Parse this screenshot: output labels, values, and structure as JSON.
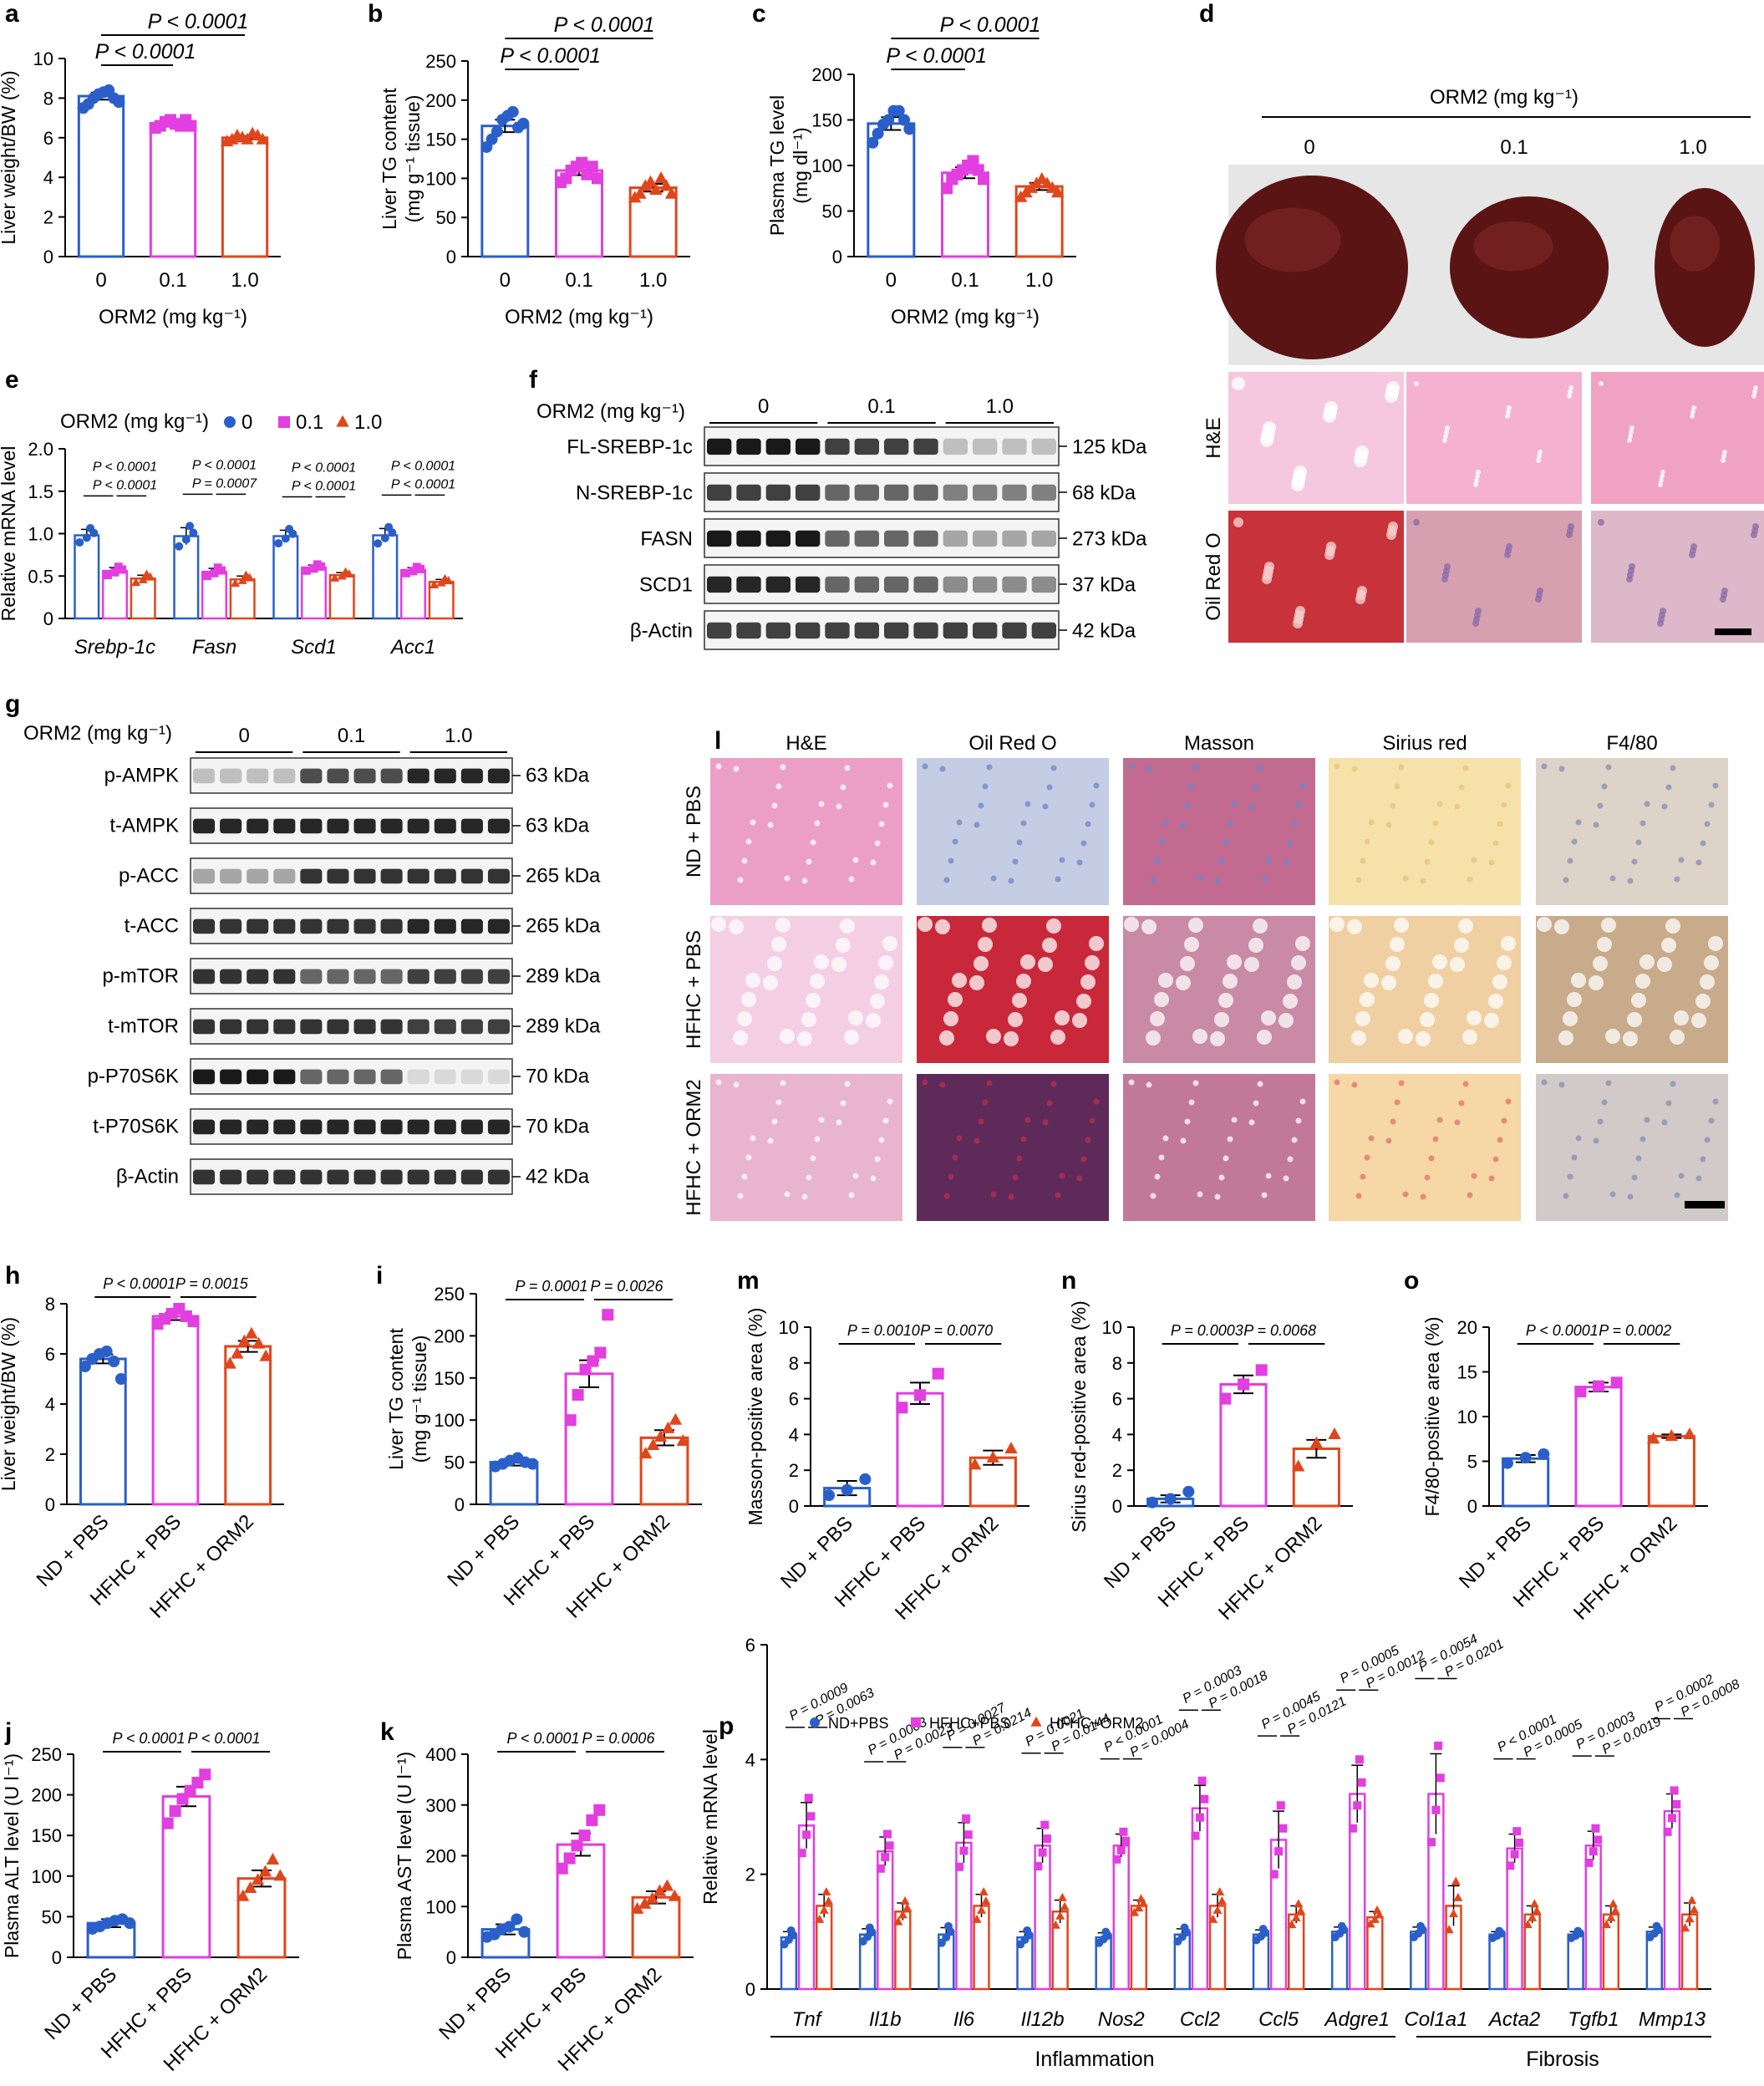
{
  "colors": {
    "blue": "#2a5fc9",
    "magenta": "#e23ee0",
    "red": "#e0461c",
    "black": "#000000"
  },
  "panels": {
    "a": {
      "letter": "a",
      "ylabel": "Liver weight/BW (%)",
      "xlabel": "ORM2 (mg kg⁻¹)",
      "ticks_y": [
        "0",
        "2",
        "4",
        "6",
        "8",
        "10"
      ],
      "ymax": 10,
      "cats": [
        "0",
        "0.1",
        "1.0"
      ],
      "values": [
        8.1,
        6.7,
        6.0
      ],
      "errors": [
        0.18,
        0.1,
        0.08
      ],
      "points": [
        [
          7.5,
          7.7,
          8.0,
          8.2,
          8.3,
          8.4,
          8.0,
          7.8
        ],
        [
          6.5,
          6.6,
          6.8,
          6.9,
          6.7,
          6.6,
          6.9,
          6.6
        ],
        [
          5.8,
          5.9,
          6.1,
          6.0,
          5.9,
          6.2,
          6.1,
          5.9
        ]
      ],
      "sig": [
        "P < 0.0001",
        "P < 0.0001"
      ]
    },
    "b": {
      "letter": "b",
      "ylabel": "Liver TG content",
      "ylabel2": "(mg g⁻¹ tissue)",
      "xlabel": "ORM2 (mg kg⁻¹)",
      "ticks_y": [
        "0",
        "50",
        "100",
        "150",
        "200",
        "250"
      ],
      "ymax": 250,
      "cats": [
        "0",
        "0.1",
        "1.0"
      ],
      "values": [
        167,
        110,
        88
      ],
      "errors": [
        8,
        6,
        5
      ],
      "points": [
        [
          140,
          150,
          160,
          175,
          180,
          185,
          165,
          170
        ],
        [
          95,
          100,
          110,
          115,
          120,
          105,
          115,
          100
        ],
        [
          75,
          80,
          90,
          95,
          85,
          100,
          90,
          80
        ]
      ],
      "sig": [
        "P < 0.0001",
        "P < 0.0001"
      ]
    },
    "c": {
      "letter": "c",
      "ylabel": "Plasma TG level",
      "ylabel2": "(mg dl⁻¹)",
      "xlabel": "ORM2 (mg kg⁻¹)",
      "ticks_y": [
        "0",
        "50",
        "100",
        "150",
        "200"
      ],
      "ymax": 200,
      "cats": [
        "0",
        "0.1",
        "1.0"
      ],
      "values": [
        146,
        92,
        77
      ],
      "errors": [
        7,
        6,
        4
      ],
      "points": [
        [
          125,
          135,
          145,
          150,
          160,
          160,
          150,
          140
        ],
        [
          75,
          85,
          90,
          95,
          100,
          105,
          95,
          85
        ],
        [
          65,
          70,
          75,
          80,
          85,
          80,
          75,
          70
        ]
      ],
      "sig": [
        "P < 0.0001",
        "P < 0.0001"
      ]
    },
    "d": {
      "letter": "d",
      "title": "ORM2 (mg kg⁻¹)",
      "doses": [
        "0",
        "0.1",
        "1.0"
      ],
      "rows": [
        "H&E",
        "Oil Red O"
      ]
    },
    "e": {
      "letter": "e",
      "ylabel": "Relative mRNA level",
      "legend_title": "ORM2 (mg kg⁻¹)",
      "legend": [
        "0",
        "0.1",
        "1.0"
      ],
      "ticks_y": [
        "0",
        "0.5",
        "1.0",
        "1.5",
        "2.0"
      ],
      "ymax": 2.0,
      "genes": [
        "Srebp-1c",
        "Fasn",
        "Scd1",
        "Acc1"
      ],
      "values": [
        [
          0.98,
          0.56,
          0.47
        ],
        [
          0.97,
          0.55,
          0.46
        ],
        [
          0.97,
          0.6,
          0.51
        ],
        [
          0.98,
          0.57,
          0.43
        ]
      ],
      "errors": [
        [
          0.07,
          0.04,
          0.04
        ],
        [
          0.1,
          0.04,
          0.04
        ],
        [
          0.07,
          0.03,
          0.03
        ],
        [
          0.08,
          0.03,
          0.03
        ]
      ],
      "sig": [
        [
          "P < 0.0001",
          "P < 0.0001"
        ],
        [
          "P = 0.0007",
          "P < 0.0001"
        ],
        [
          "P < 0.0001",
          "P < 0.0001"
        ],
        [
          "P < 0.0001",
          "P < 0.0001"
        ]
      ]
    },
    "f": {
      "letter": "f",
      "header": "ORM2 (mg kg⁻¹)",
      "groups": [
        "0",
        "0.1",
        "1.0"
      ],
      "bands": [
        {
          "name": "FL-SREBP-1c",
          "size": "125 kDa"
        },
        {
          "name": "N-SREBP-1c",
          "size": "68 kDa"
        },
        {
          "name": "FASN",
          "size": "273 kDa"
        },
        {
          "name": "SCD1",
          "size": "37 kDa"
        },
        {
          "name": "β-Actin",
          "size": "42 kDa"
        }
      ]
    },
    "g": {
      "letter": "g",
      "header": "ORM2 (mg kg⁻¹)",
      "groups": [
        "0",
        "0.1",
        "1.0"
      ],
      "bands": [
        {
          "name": "p-AMPK",
          "size": "63 kDa"
        },
        {
          "name": "t-AMPK",
          "size": "63 kDa"
        },
        {
          "name": "p-ACC",
          "size": "265 kDa"
        },
        {
          "name": "t-ACC",
          "size": "265 kDa"
        },
        {
          "name": "p-mTOR",
          "size": "289 kDa"
        },
        {
          "name": "t-mTOR",
          "size": "289 kDa"
        },
        {
          "name": "p-P70S6K",
          "size": "70 kDa"
        },
        {
          "name": "t-P70S6K",
          "size": "70 kDa"
        },
        {
          "name": "β-Actin",
          "size": "42 kDa"
        }
      ]
    },
    "l": {
      "letter": "l",
      "cols": [
        "H&E",
        "Oil Red O",
        "Masson",
        "Sirius red",
        "F4/80"
      ],
      "rows": [
        "ND + PBS",
        "HFHC + PBS",
        "HFHC + ORM2"
      ]
    },
    "h": {
      "letter": "h",
      "ylabel": "Liver weight/BW (%)",
      "ticks_y": [
        "0",
        "2",
        "4",
        "6",
        "8"
      ],
      "ymax": 8,
      "cats": [
        "ND + PBS",
        "HFHC + PBS",
        "HFHC + ORM2"
      ],
      "values": [
        5.8,
        7.5,
        6.3
      ],
      "errors": [
        0.18,
        0.15,
        0.22
      ],
      "points": [
        [
          5.5,
          5.8,
          6.0,
          6.1,
          5.7,
          5.0
        ],
        [
          7.2,
          7.4,
          7.6,
          7.8,
          7.5,
          7.3
        ],
        [
          5.6,
          6.0,
          6.5,
          6.8,
          6.4,
          5.9
        ]
      ],
      "sig": [
        "P < 0.0001",
        "P = 0.0015"
      ]
    },
    "i": {
      "letter": "i",
      "ylabel": "Liver TG content",
      "ylabel2": "(mg g⁻¹ tissue)",
      "ticks_y": [
        "0",
        "50",
        "100",
        "150",
        "200",
        "250"
      ],
      "ymax": 250,
      "cats": [
        "ND + PBS",
        "HFHC + PBS",
        "HFHC + ORM2"
      ],
      "values": [
        50,
        155,
        79
      ],
      "errors": [
        4,
        16,
        9
      ],
      "points": [
        [
          45,
          48,
          52,
          55,
          50,
          48
        ],
        [
          100,
          130,
          160,
          170,
          180,
          225
        ],
        [
          60,
          70,
          80,
          90,
          100,
          75
        ]
      ],
      "sig": [
        "P = 0.0001",
        "P = 0.0026"
      ]
    },
    "m": {
      "letter": "m",
      "ylabel": "Masson-positive area (%)",
      "ticks_y": [
        "0",
        "2",
        "4",
        "6",
        "8",
        "10"
      ],
      "ymax": 10,
      "cats": [
        "ND + PBS",
        "HFHC + PBS",
        "HFHC + ORM2"
      ],
      "values": [
        1.0,
        6.3,
        2.7
      ],
      "errors": [
        0.4,
        0.6,
        0.4
      ],
      "points": [
        [
          0.6,
          0.9,
          1.5
        ],
        [
          5.5,
          6.2,
          7.4
        ],
        [
          2.3,
          2.7,
          3.2
        ]
      ],
      "sig": [
        "P = 0.0010",
        "P = 0.0070"
      ]
    },
    "n": {
      "letter": "n",
      "ylabel": "Sirius red-positive area (%)",
      "ticks_y": [
        "0",
        "2",
        "4",
        "6",
        "8",
        "10"
      ],
      "ymax": 10,
      "cats": [
        "ND + PBS",
        "HFHC + PBS",
        "HFHC + ORM2"
      ],
      "values": [
        0.4,
        6.8,
        3.2
      ],
      "errors": [
        0.2,
        0.5,
        0.5
      ],
      "points": [
        [
          0.2,
          0.4,
          0.8
        ],
        [
          6.0,
          6.8,
          7.6
        ],
        [
          2.2,
          3.5,
          4.0
        ]
      ],
      "sig": [
        "P = 0.0003",
        "P = 0.0068"
      ]
    },
    "o": {
      "letter": "o",
      "ylabel": "F4/80-positive area (%)",
      "ticks_y": [
        "0",
        "5",
        "10",
        "15",
        "20"
      ],
      "ymax": 20,
      "cats": [
        "ND + PBS",
        "HFHC + PBS",
        "HFHC + ORM2"
      ],
      "values": [
        5.3,
        13.3,
        7.8
      ],
      "errors": [
        0.4,
        0.5,
        0.2
      ],
      "points": [
        [
          4.8,
          5.4,
          5.8
        ],
        [
          12.8,
          13.4,
          13.8
        ],
        [
          7.5,
          7.8,
          8.0
        ]
      ],
      "sig": [
        "P < 0.0001",
        "P = 0.0002"
      ]
    },
    "j": {
      "letter": "j",
      "ylabel": "Plasma ALT level (U l⁻¹)",
      "ticks_y": [
        "0",
        "50",
        "100",
        "150",
        "200",
        "250"
      ],
      "ymax": 250,
      "cats": [
        "ND + PBS",
        "HFHC + PBS",
        "HFHC + ORM2"
      ],
      "values": [
        42,
        198,
        97
      ],
      "errors": [
        5,
        12,
        10
      ],
      "points": [
        [
          35,
          38,
          42,
          45,
          47,
          42
        ],
        [
          165,
          180,
          195,
          205,
          215,
          225
        ],
        [
          75,
          85,
          95,
          105,
          120,
          100
        ]
      ],
      "sig": [
        "P < 0.0001",
        "P < 0.0001"
      ]
    },
    "k": {
      "letter": "k",
      "ylabel": "Plasma AST level (U l⁻¹)",
      "ticks_y": [
        "0",
        "100",
        "200",
        "300",
        "400"
      ],
      "ymax": 400,
      "cats": [
        "ND + PBS",
        "HFHC + PBS",
        "HFHC + ORM2"
      ],
      "values": [
        55,
        222,
        118
      ],
      "errors": [
        10,
        22,
        12
      ],
      "points": [
        [
          40,
          45,
          55,
          60,
          75,
          50
        ],
        [
          175,
          195,
          220,
          240,
          270,
          290
        ],
        [
          95,
          105,
          115,
          130,
          140,
          120
        ]
      ],
      "sig": [
        "P < 0.0001",
        "P = 0.0006"
      ]
    },
    "p": {
      "letter": "p",
      "ylabel": "Relative mRNA level",
      "ticks_y": [
        "0",
        "2",
        "4",
        "6"
      ],
      "ymax": 6,
      "legend": [
        "ND+PBS",
        "HFHC+PBS",
        "HFHC+ORM2"
      ],
      "genes": [
        "Tnf",
        "Il1b",
        "Il6",
        "Il12b",
        "Nos2",
        "Ccl2",
        "Ccl5",
        "Adgre1",
        "Col1a1",
        "Acta2",
        "Tgfb1",
        "Mmp13"
      ],
      "values": [
        [
          0.9,
          2.85,
          1.45
        ],
        [
          0.95,
          2.4,
          1.35
        ],
        [
          0.95,
          2.55,
          1.45
        ],
        [
          0.9,
          2.5,
          1.35
        ],
        [
          0.9,
          2.5,
          1.45
        ],
        [
          0.95,
          3.15,
          1.45
        ],
        [
          0.95,
          2.6,
          1.3
        ],
        [
          1.0,
          3.4,
          1.25
        ],
        [
          1.0,
          3.4,
          1.45
        ],
        [
          0.95,
          2.45,
          1.3
        ],
        [
          0.95,
          2.5,
          1.3
        ],
        [
          1.0,
          3.1,
          1.3
        ]
      ],
      "errors": [
        [
          0.1,
          0.4,
          0.2
        ],
        [
          0.1,
          0.25,
          0.15
        ],
        [
          0.12,
          0.35,
          0.2
        ],
        [
          0.1,
          0.3,
          0.2
        ],
        [
          0.08,
          0.2,
          0.1
        ],
        [
          0.1,
          0.4,
          0.2
        ],
        [
          0.08,
          0.5,
          0.15
        ],
        [
          0.08,
          0.5,
          0.1
        ],
        [
          0.08,
          0.7,
          0.35
        ],
        [
          0.05,
          0.25,
          0.15
        ],
        [
          0.05,
          0.25,
          0.15
        ],
        [
          0.08,
          0.3,
          0.2
        ]
      ],
      "sig": [
        [
          "P = 0.0009",
          "P = 0.0063"
        ],
        [
          "P = 0.0003",
          "P = 0.0023"
        ],
        [
          "P = 0.0027",
          "P = 0.0214"
        ],
        [
          "P = 0.0021",
          "P = 0.0144"
        ],
        [
          "P < 0.0001",
          "P = 0.0004"
        ],
        [
          "P = 0.0003",
          "P = 0.0018"
        ],
        [
          "P = 0.0045",
          "P = 0.0121"
        ],
        [
          "P = 0.0005",
          "P = 0.0012"
        ],
        [
          "P = 0.0054",
          "P = 0.0201"
        ],
        [
          "P < 0.0001",
          "P = 0.0005"
        ],
        [
          "P = 0.0003",
          "P = 0.0019"
        ],
        [
          "P = 0.0002",
          "P = 0.0008"
        ]
      ],
      "groups": [
        "Inflammation",
        "Fibrosis"
      ]
    }
  },
  "chart_data": [
    {
      "type": "bar",
      "title": "a",
      "categories": [
        "0",
        "0.1",
        "1.0"
      ],
      "values": [
        8.1,
        6.7,
        6.0
      ],
      "ylabel": "Liver weight/BW (%)",
      "xlabel": "ORM2 (mg kg⁻¹)",
      "ylim": [
        0,
        10
      ]
    },
    {
      "type": "bar",
      "title": "b",
      "categories": [
        "0",
        "0.1",
        "1.0"
      ],
      "values": [
        167,
        110,
        88
      ],
      "ylabel": "Liver TG content (mg g⁻¹ tissue)",
      "xlabel": "ORM2 (mg kg⁻¹)",
      "ylim": [
        0,
        250
      ]
    },
    {
      "type": "bar",
      "title": "c",
      "categories": [
        "0",
        "0.1",
        "1.0"
      ],
      "values": [
        146,
        92,
        77
      ],
      "ylabel": "Plasma TG level (mg dl⁻¹)",
      "xlabel": "ORM2 (mg kg⁻¹)",
      "ylim": [
        0,
        200
      ]
    },
    {
      "type": "bar",
      "title": "e",
      "categories": [
        "Srebp-1c",
        "Fasn",
        "Scd1",
        "Acc1"
      ],
      "series": [
        {
          "name": "0",
          "values": [
            0.98,
            0.97,
            0.97,
            0.98
          ]
        },
        {
          "name": "0.1",
          "values": [
            0.56,
            0.55,
            0.6,
            0.57
          ]
        },
        {
          "name": "1.0",
          "values": [
            0.47,
            0.46,
            0.51,
            0.43
          ]
        }
      ],
      "ylabel": "Relative mRNA level",
      "ylim": [
        0,
        2
      ]
    },
    {
      "type": "bar",
      "title": "h",
      "categories": [
        "ND + PBS",
        "HFHC + PBS",
        "HFHC + ORM2"
      ],
      "values": [
        5.8,
        7.5,
        6.3
      ],
      "ylabel": "Liver weight/BW (%)",
      "ylim": [
        0,
        8
      ]
    },
    {
      "type": "bar",
      "title": "i",
      "categories": [
        "ND + PBS",
        "HFHC + PBS",
        "HFHC + ORM2"
      ],
      "values": [
        50,
        155,
        79
      ],
      "ylabel": "Liver TG content (mg g⁻¹ tissue)",
      "ylim": [
        0,
        250
      ]
    },
    {
      "type": "bar",
      "title": "m",
      "categories": [
        "ND + PBS",
        "HFHC + PBS",
        "HFHC + ORM2"
      ],
      "values": [
        1.0,
        6.3,
        2.7
      ],
      "ylabel": "Masson-positive area (%)",
      "ylim": [
        0,
        10
      ]
    },
    {
      "type": "bar",
      "title": "n",
      "categories": [
        "ND + PBS",
        "HFHC + PBS",
        "HFHC + ORM2"
      ],
      "values": [
        0.4,
        6.8,
        3.2
      ],
      "ylabel": "Sirius red-positive area (%)",
      "ylim": [
        0,
        10
      ]
    },
    {
      "type": "bar",
      "title": "o",
      "categories": [
        "ND + PBS",
        "HFHC + PBS",
        "HFHC + ORM2"
      ],
      "values": [
        5.3,
        13.3,
        7.8
      ],
      "ylabel": "F4/80-positive area (%)",
      "ylim": [
        0,
        20
      ]
    },
    {
      "type": "bar",
      "title": "j",
      "categories": [
        "ND + PBS",
        "HFHC + PBS",
        "HFHC + ORM2"
      ],
      "values": [
        42,
        198,
        97
      ],
      "ylabel": "Plasma ALT level (U l⁻¹)",
      "ylim": [
        0,
        250
      ]
    },
    {
      "type": "bar",
      "title": "k",
      "categories": [
        "ND + PBS",
        "HFHC + PBS",
        "HFHC + ORM2"
      ],
      "values": [
        55,
        222,
        118
      ],
      "ylabel": "Plasma AST level (U l⁻¹)",
      "ylim": [
        0,
        400
      ]
    },
    {
      "type": "bar",
      "title": "p",
      "categories": [
        "Tnf",
        "Il1b",
        "Il6",
        "Il12b",
        "Nos2",
        "Ccl2",
        "Ccl5",
        "Adgre1",
        "Col1a1",
        "Acta2",
        "Tgfb1",
        "Mmp13"
      ],
      "series": [
        {
          "name": "ND+PBS",
          "values": [
            0.9,
            0.95,
            0.95,
            0.9,
            0.9,
            0.95,
            0.95,
            1.0,
            1.0,
            0.95,
            0.95,
            1.0
          ]
        },
        {
          "name": "HFHC+PBS",
          "values": [
            2.85,
            2.4,
            2.55,
            2.5,
            2.5,
            3.15,
            2.6,
            3.4,
            3.4,
            2.45,
            2.5,
            3.1
          ]
        },
        {
          "name": "HFHC+ORM2",
          "values": [
            1.45,
            1.35,
            1.45,
            1.35,
            1.45,
            1.45,
            1.3,
            1.25,
            1.45,
            1.3,
            1.3,
            1.3
          ]
        }
      ],
      "ylabel": "Relative mRNA level",
      "ylim": [
        0,
        6
      ]
    }
  ]
}
